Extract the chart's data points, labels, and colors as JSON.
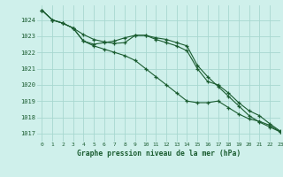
{
  "title": "Graphe pression niveau de la mer (hPa)",
  "bg_color": "#cff0eb",
  "grid_color": "#a8d8d0",
  "line_color": "#1a5c30",
  "xlim": [
    -0.5,
    23
  ],
  "ylim": [
    1016.5,
    1024.9
  ],
  "yticks": [
    1017,
    1018,
    1019,
    1020,
    1021,
    1022,
    1023,
    1024
  ],
  "xticks": [
    0,
    1,
    2,
    3,
    4,
    5,
    6,
    7,
    8,
    9,
    10,
    11,
    12,
    13,
    14,
    15,
    16,
    17,
    18,
    19,
    20,
    21,
    22,
    23
  ],
  "line1": [
    1024.6,
    1024.0,
    1023.8,
    1023.5,
    1023.1,
    1022.8,
    1022.65,
    1022.55,
    1022.6,
    1023.05,
    1023.05,
    1022.9,
    1022.8,
    1022.6,
    1022.4,
    1021.2,
    1020.5,
    1019.9,
    1019.3,
    1018.7,
    1018.1,
    1017.7,
    1017.4,
    1017.1
  ],
  "line2": [
    1024.6,
    1024.0,
    1023.8,
    1023.5,
    1022.7,
    1022.5,
    1022.6,
    1022.7,
    1022.9,
    1023.05,
    1023.05,
    1022.8,
    1022.6,
    1022.4,
    1022.1,
    1021.0,
    1020.2,
    1020.0,
    1019.5,
    1018.9,
    1018.4,
    1018.1,
    1017.6,
    1017.15
  ],
  "line3": [
    1024.6,
    1024.0,
    1023.8,
    1023.5,
    1022.7,
    1022.4,
    1022.2,
    1022.0,
    1021.8,
    1021.5,
    1021.0,
    1020.5,
    1020.0,
    1019.5,
    1019.0,
    1018.9,
    1018.9,
    1019.0,
    1018.6,
    1018.2,
    1017.9,
    1017.75,
    1017.5,
    1017.1
  ]
}
